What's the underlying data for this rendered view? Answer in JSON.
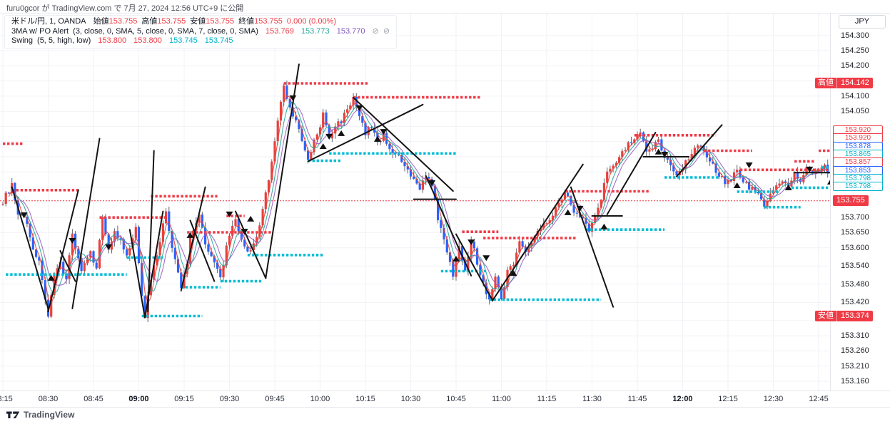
{
  "attribution": "furu0gcor が TradingView.com で 7月 27, 2024 12:56 UTC+9 に公開",
  "legend": {
    "symbol_title": "米ドル/円, 1, OANDA",
    "open_label": "始値",
    "open": "153.755",
    "high_label": "高値",
    "high": "153.755",
    "low_label": "安値",
    "low": "153.755",
    "close_label": "終値",
    "close": "153.755",
    "change": "0.000 (0.00%)",
    "ma_name": "3MA w/ PO Alert",
    "ma_params": "(3, close, 0, SMA, 5, close, 0, SMA, 7, close, 0, SMA)",
    "ma_v1": "153.769",
    "ma_v2": "153.773",
    "ma_v3": "153.770",
    "ma_icon1": "⊘",
    "ma_icon2": "⊘",
    "swing_name": "Swing",
    "swing_params": "(5, 5, high, low)",
    "swing_v1": "153.800",
    "swing_v2": "153.800",
    "swing_v3": "153.745",
    "swing_v4": "153.745"
  },
  "price_axis": {
    "currency_button": "JPY",
    "ticks": [
      154.3,
      154.25,
      154.2,
      154.1,
      154.05,
      153.7,
      153.65,
      153.6,
      153.54,
      153.48,
      153.42,
      153.31,
      153.26,
      153.21,
      153.16
    ],
    "label_chips": [
      {
        "value": "153.920",
        "color": "red"
      },
      {
        "value": "153.920",
        "color": "red"
      },
      {
        "value": "153.878",
        "color": "blue"
      },
      {
        "value": "153.865",
        "color": "teal"
      },
      {
        "value": "153.857",
        "color": "red"
      },
      {
        "value": "153.853",
        "color": "blue"
      },
      {
        "value": "153.798",
        "color": "teal"
      },
      {
        "value": "153.798",
        "color": "teal"
      }
    ],
    "high_badge": {
      "label": "高値",
      "value": "154.142",
      "price": 154.142
    },
    "low_badge": {
      "label": "安値",
      "value": "153.374",
      "price": 153.374
    },
    "last_badge": {
      "value": "153.755",
      "price": 153.755
    }
  },
  "time_axis": {
    "start": "08:15",
    "step_minutes": 15,
    "labels": [
      "08:15",
      "08:30",
      "08:45",
      "09:00",
      "09:15",
      "09:30",
      "09:45",
      "10:00",
      "10:15",
      "10:30",
      "10:45",
      "11:00",
      "11:15",
      "11:30",
      "11:45",
      "12:00",
      "12:15",
      "12:30",
      "12:45"
    ],
    "bold_labels": [
      "09:00",
      "12:00"
    ]
  },
  "footer": {
    "logo_text": "TradingView"
  },
  "colors": {
    "up": "#e8413c",
    "down": "#2962ff",
    "wick": "#61646e",
    "red": "#ef3b46",
    "blue": "#2962ff",
    "teal": "#00b5cc",
    "swing_high_dots": "#ef3b46",
    "swing_low_dots": "#00bcd4",
    "ma1": "#e8413c",
    "ma2": "#26a69a",
    "ma3": "#9c5fc9",
    "trend_line": "#141414",
    "marker": "#111111",
    "grid": "#f0f2f6",
    "price_line": "#ef3b46"
  },
  "chart_data": {
    "type": "candlestick",
    "symbol": "USD/JPY",
    "interval_minutes": 1,
    "exchange": "OANDA",
    "session_start": "08:15",
    "session_end": "12:49",
    "day_high": 154.142,
    "day_low": 153.374,
    "last_price": 153.755,
    "price_path": [
      [
        0,
        153.755
      ],
      [
        3,
        153.806
      ],
      [
        5,
        153.7
      ],
      [
        7,
        153.71
      ],
      [
        10,
        153.6
      ],
      [
        12,
        153.55
      ],
      [
        13,
        153.5
      ],
      [
        15,
        153.368
      ],
      [
        17,
        153.5
      ],
      [
        19,
        153.55
      ],
      [
        21,
        153.5
      ],
      [
        23,
        153.645
      ],
      [
        26,
        153.525
      ],
      [
        29,
        153.58
      ],
      [
        31,
        153.54
      ],
      [
        33,
        153.7
      ],
      [
        35,
        153.6
      ],
      [
        37,
        153.65
      ],
      [
        39,
        153.62
      ],
      [
        41,
        153.568
      ],
      [
        44,
        153.66
      ],
      [
        46,
        153.45
      ],
      [
        47,
        153.374
      ],
      [
        49,
        153.5
      ],
      [
        51,
        153.58
      ],
      [
        54,
        153.72
      ],
      [
        56,
        153.6
      ],
      [
        59,
        153.47
      ],
      [
        61,
        153.55
      ],
      [
        62,
        153.64
      ],
      [
        65,
        153.71
      ],
      [
        67,
        153.62
      ],
      [
        69,
        153.57
      ],
      [
        72,
        153.5
      ],
      [
        74,
        153.6
      ],
      [
        77,
        153.695
      ],
      [
        79,
        153.62
      ],
      [
        82,
        153.585
      ],
      [
        84,
        153.63
      ],
      [
        86,
        153.72
      ],
      [
        88,
        153.83
      ],
      [
        90,
        153.95
      ],
      [
        91,
        154.02
      ],
      [
        93,
        154.135
      ],
      [
        95,
        154.06
      ],
      [
        97,
        154.02
      ],
      [
        99,
        153.95
      ],
      [
        101,
        153.886
      ],
      [
        103,
        153.95
      ],
      [
        105,
        154.0
      ],
      [
        106,
        154.04
      ],
      [
        108,
        153.96
      ],
      [
        110,
        154.0
      ],
      [
        112,
        154.02
      ],
      [
        114,
        154.06
      ],
      [
        116,
        154.09
      ],
      [
        118,
        154.03
      ],
      [
        120,
        153.98
      ],
      [
        122,
        154.0
      ],
      [
        124,
        153.95
      ],
      [
        126,
        153.97
      ],
      [
        128,
        153.93
      ],
      [
        130,
        153.91
      ],
      [
        132,
        153.88
      ],
      [
        134,
        153.85
      ],
      [
        136,
        153.82
      ],
      [
        138,
        153.8
      ],
      [
        140,
        153.84
      ],
      [
        142,
        153.8
      ],
      [
        144,
        153.7
      ],
      [
        146,
        153.62
      ],
      [
        148,
        153.56
      ],
      [
        149,
        153.51
      ],
      [
        151,
        153.6
      ],
      [
        153,
        153.53
      ],
      [
        155,
        153.63
      ],
      [
        157,
        153.55
      ],
      [
        159,
        153.48
      ],
      [
        161,
        153.43
      ],
      [
        163,
        153.5
      ],
      [
        165,
        153.44
      ],
      [
        167,
        153.52
      ],
      [
        169,
        153.55
      ],
      [
        171,
        153.63
      ],
      [
        173,
        153.58
      ],
      [
        175,
        153.62
      ],
      [
        177,
        153.65
      ],
      [
        179,
        153.68
      ],
      [
        181,
        153.7
      ],
      [
        183,
        153.73
      ],
      [
        186,
        153.786
      ],
      [
        188,
        153.74
      ],
      [
        190,
        153.71
      ],
      [
        192,
        153.7
      ],
      [
        194,
        153.66
      ],
      [
        196,
        153.7
      ],
      [
        198,
        153.76
      ],
      [
        200,
        153.85
      ],
      [
        202,
        153.88
      ],
      [
        204,
        153.9
      ],
      [
        206,
        153.93
      ],
      [
        208,
        153.95
      ],
      [
        211,
        153.975
      ],
      [
        213,
        153.91
      ],
      [
        215,
        153.93
      ],
      [
        217,
        153.96
      ],
      [
        219,
        153.9
      ],
      [
        221,
        153.87
      ],
      [
        223,
        153.84
      ],
      [
        225,
        153.87
      ],
      [
        227,
        153.9
      ],
      [
        229,
        153.93
      ],
      [
        231,
        153.945
      ],
      [
        233,
        153.9
      ],
      [
        235,
        153.87
      ],
      [
        237,
        153.84
      ],
      [
        239,
        153.82
      ],
      [
        241,
        153.83
      ],
      [
        243,
        153.855
      ],
      [
        245,
        153.82
      ],
      [
        247,
        153.8
      ],
      [
        249,
        153.79
      ],
      [
        252,
        153.74
      ],
      [
        254,
        153.78
      ],
      [
        256,
        153.8
      ],
      [
        258,
        153.82
      ],
      [
        260,
        153.8
      ],
      [
        262,
        153.84
      ],
      [
        264,
        153.82
      ],
      [
        266,
        153.86
      ],
      [
        268,
        153.84
      ],
      [
        270,
        153.86
      ],
      [
        272,
        153.87
      ],
      [
        273,
        153.85
      ]
    ],
    "swing_high_levels": [
      [
        0,
        7,
        153.943
      ],
      [
        3,
        25,
        153.79
      ],
      [
        32,
        54,
        153.7
      ],
      [
        49,
        71,
        153.77
      ],
      [
        61,
        89,
        153.651
      ],
      [
        74,
        80,
        153.705
      ],
      [
        93,
        121,
        154.142
      ],
      [
        116,
        158,
        154.096
      ],
      [
        152,
        164,
        153.653
      ],
      [
        159,
        190,
        153.632
      ],
      [
        186,
        214,
        153.786
      ],
      [
        209,
        236,
        153.971
      ],
      [
        232,
        248,
        153.92
      ],
      [
        244,
        274,
        153.857
      ],
      [
        262,
        269,
        153.885
      ],
      [
        270,
        274,
        153.92
      ]
    ],
    "swing_low_levels": [
      [
        1,
        41,
        153.512
      ],
      [
        41,
        53,
        153.568
      ],
      [
        46,
        66,
        153.375
      ],
      [
        59,
        72,
        153.47
      ],
      [
        72,
        86,
        153.49
      ],
      [
        81,
        106,
        153.576
      ],
      [
        101,
        112,
        153.887
      ],
      [
        108,
        150,
        153.911
      ],
      [
        145,
        160,
        153.523
      ],
      [
        161,
        198,
        153.429
      ],
      [
        193,
        219,
        153.66
      ],
      [
        219,
        237,
        153.832
      ],
      [
        243,
        257,
        153.785
      ],
      [
        252,
        264,
        153.734
      ],
      [
        261,
        274,
        153.798
      ],
      [
        271,
        274,
        153.865
      ]
    ],
    "trend_lines": [
      [
        3,
        153.8,
        15,
        153.4
      ],
      [
        15,
        153.39,
        25,
        153.79
      ],
      [
        19,
        153.59,
        24,
        153.49
      ],
      [
        23,
        153.4,
        32,
        153.96
      ],
      [
        42,
        153.66,
        47,
        153.37
      ],
      [
        47,
        153.37,
        53,
        153.72
      ],
      [
        50,
        153.92,
        48,
        153.39
      ],
      [
        59,
        153.46,
        67,
        153.8
      ],
      [
        62,
        153.69,
        70,
        153.49
      ],
      [
        77,
        153.72,
        87,
        153.5
      ],
      [
        87,
        153.5,
        98,
        154.205
      ],
      [
        101,
        153.885,
        139,
        154.072
      ],
      [
        116,
        154.095,
        149,
        153.787
      ],
      [
        140,
        153.837,
        155,
        153.508
      ],
      [
        136,
        153.76,
        150,
        153.76
      ],
      [
        150,
        153.645,
        162,
        153.428
      ],
      [
        162,
        153.425,
        192,
        153.875
      ],
      [
        188,
        153.8,
        202,
        153.405
      ],
      [
        195,
        153.705,
        205,
        153.705
      ],
      [
        200,
        153.71,
        216,
        153.98
      ],
      [
        212,
        153.9,
        227,
        153.9
      ],
      [
        223,
        153.835,
        238,
        154.005
      ],
      [
        262,
        153.848,
        274,
        153.848
      ]
    ],
    "markers_down": [
      [
        7,
        153.707
      ],
      [
        23,
        153.623
      ],
      [
        35,
        153.602
      ],
      [
        75,
        153.71
      ],
      [
        80,
        153.653
      ],
      [
        96,
        154.093
      ],
      [
        108,
        153.966
      ],
      [
        118,
        154.06
      ],
      [
        126,
        153.982
      ],
      [
        142,
        153.813
      ],
      [
        155,
        153.618
      ],
      [
        160,
        153.566
      ],
      [
        191,
        153.729
      ],
      [
        219,
        153.907
      ],
      [
        247,
        153.872
      ],
      [
        267,
        153.858
      ]
    ],
    "markers_up": [
      [
        16,
        153.501
      ],
      [
        62,
        153.642
      ],
      [
        82,
        153.696
      ],
      [
        106,
        153.935
      ],
      [
        112,
        153.978
      ],
      [
        124,
        153.959
      ],
      [
        150,
        153.564
      ],
      [
        169,
        153.517
      ],
      [
        187,
        153.717
      ],
      [
        199,
        153.67
      ],
      [
        217,
        153.917
      ],
      [
        243,
        153.806
      ],
      [
        260,
        153.799
      ],
      [
        274,
        153.818
      ]
    ]
  }
}
